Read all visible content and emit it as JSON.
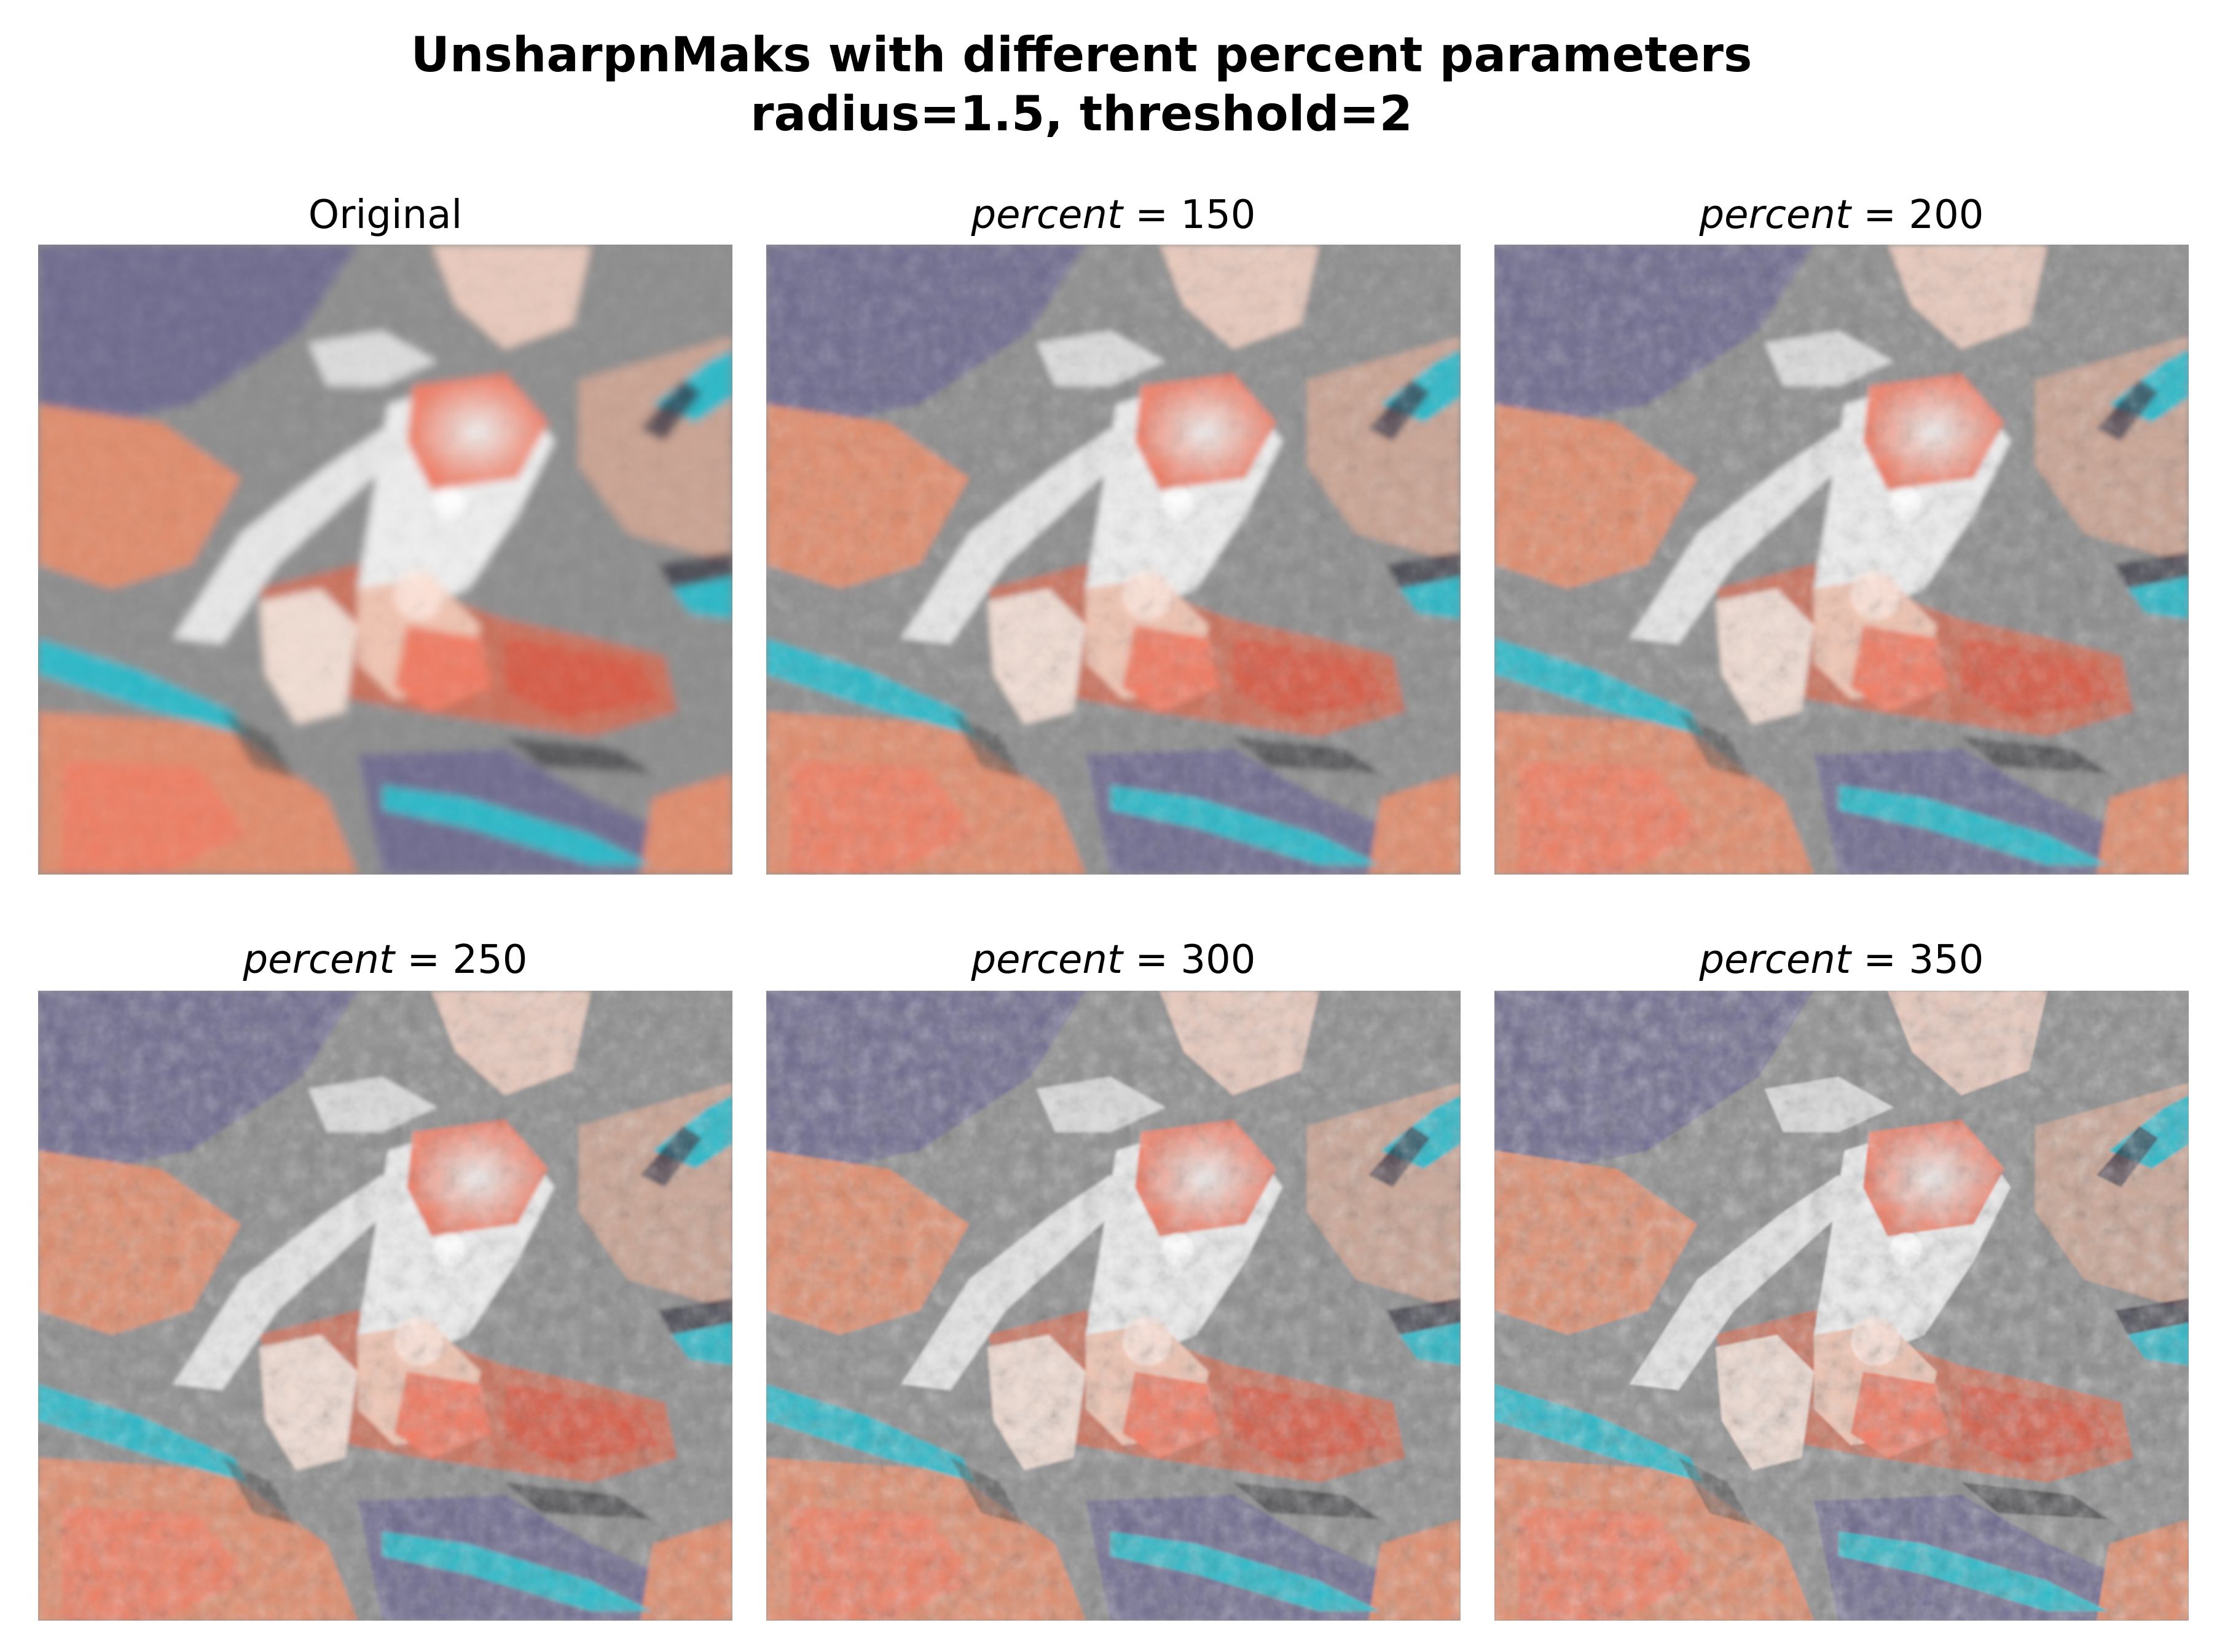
{
  "figure": {
    "title_line1": "UnsharpnMaks with different percent parameters",
    "title_line2": "radius=1.5, threshold=2"
  },
  "panels": [
    {
      "title": "Original",
      "is_math": false
    },
    {
      "title_var": "percent",
      "title_eq": " = 150",
      "is_math": true
    },
    {
      "title_var": "percent",
      "title_eq": " = 200",
      "is_math": true
    },
    {
      "title_var": "percent",
      "title_eq": " = 250",
      "is_math": true
    },
    {
      "title_var": "percent",
      "title_eq": " = 300",
      "is_math": true
    },
    {
      "title_var": "percent",
      "title_eq": " = 350",
      "is_math": true
    }
  ],
  "colors": {
    "terrain_gray": "#8c8c8c",
    "terrain_purple": "#6e6a8e",
    "terrain_orange": "#e08c6c",
    "terrain_salmon": "#f07a62",
    "terrain_white": "#eeeeee",
    "water_cyan": "#2ab8c8"
  }
}
